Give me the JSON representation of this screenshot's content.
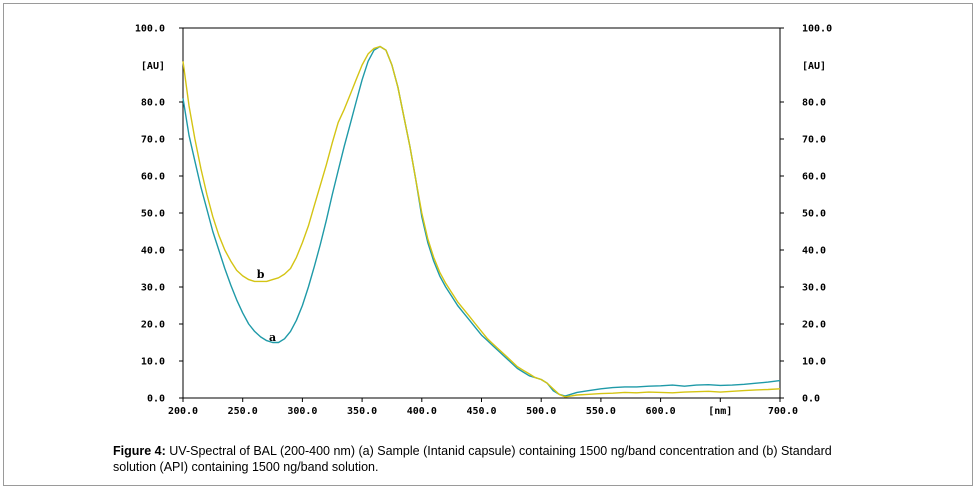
{
  "caption": {
    "label": "Figure 4:",
    "text": " UV-Spectral of BAL (200-400 nm) (a) Sample (Intanid capsule) containing 1500 ng/band concentration and (b) Standard solution (API) containing 1500 ng/band solution."
  },
  "chart_data": {
    "type": "line",
    "xlabel": "[nm]",
    "ylabel": "[AU]",
    "ylabel_right": "[AU]",
    "xlim": [
      200,
      700
    ],
    "ylim": [
      0,
      100
    ],
    "x_ticks": [
      "200.0",
      "250.0",
      "300.0",
      "350.0",
      "400.0",
      "450.0",
      "500.0",
      "550.0",
      "600.0",
      "650.0",
      "700.0"
    ],
    "y_ticks": [
      "0.0",
      "10.0",
      "20.0",
      "30.0",
      "40.0",
      "50.0",
      "60.0",
      "70.0",
      "80.0",
      "100.0"
    ],
    "grid": false,
    "series": [
      {
        "name": "a",
        "color": "#1f9aa8",
        "label_at": [
          275,
          16.5
        ],
        "x": [
          200,
          205,
          210,
          215,
          220,
          225,
          230,
          235,
          240,
          245,
          250,
          255,
          260,
          265,
          270,
          275,
          280,
          285,
          290,
          295,
          300,
          305,
          310,
          315,
          320,
          325,
          330,
          335,
          340,
          345,
          350,
          355,
          360,
          365,
          370,
          375,
          380,
          385,
          390,
          395,
          400,
          405,
          410,
          415,
          420,
          425,
          430,
          435,
          440,
          445,
          450,
          455,
          460,
          465,
          470,
          475,
          480,
          485,
          490,
          495,
          500,
          505,
          510,
          515,
          520,
          530,
          540,
          550,
          560,
          570,
          580,
          590,
          600,
          610,
          620,
          630,
          640,
          650,
          660,
          670,
          680,
          690,
          700
        ],
        "y": [
          81,
          71,
          64,
          57,
          51,
          45,
          40,
          35,
          30.5,
          26.5,
          23,
          20,
          18,
          16.5,
          15.5,
          15,
          15,
          16,
          18,
          21,
          25,
          30,
          35.5,
          41.5,
          48,
          55,
          61.5,
          68,
          74,
          80,
          86,
          91,
          94,
          95,
          94,
          90,
          84,
          76,
          68,
          59,
          49,
          42,
          37,
          33,
          30,
          27.5,
          25,
          23,
          21,
          19,
          17,
          15.5,
          14,
          12.5,
          11,
          9.5,
          8,
          7,
          6,
          5.5,
          5,
          4,
          2,
          1,
          0.5,
          1.5,
          2,
          2.5,
          2.8,
          3,
          3,
          3.2,
          3.3,
          3.5,
          3.2,
          3.5,
          3.6,
          3.4,
          3.5,
          3.7,
          4,
          4.3,
          4.7
        ]
      },
      {
        "name": "b",
        "color": "#d4c414",
        "label_at": [
          265,
          33.5
        ],
        "x": [
          200,
          205,
          210,
          215,
          220,
          225,
          230,
          235,
          240,
          245,
          250,
          255,
          260,
          265,
          270,
          275,
          280,
          285,
          290,
          295,
          300,
          305,
          310,
          315,
          320,
          325,
          330,
          335,
          340,
          345,
          350,
          355,
          360,
          365,
          370,
          375,
          380,
          385,
          390,
          395,
          400,
          405,
          410,
          415,
          420,
          425,
          430,
          435,
          440,
          445,
          450,
          455,
          460,
          465,
          470,
          475,
          480,
          485,
          490,
          495,
          500,
          505,
          510,
          515,
          520,
          530,
          540,
          550,
          560,
          570,
          580,
          590,
          600,
          610,
          620,
          630,
          640,
          650,
          660,
          670,
          680,
          690,
          700
        ],
        "y": [
          91,
          79,
          70,
          62,
          55,
          49,
          44,
          40,
          37,
          34.5,
          33,
          32,
          31.5,
          31.5,
          31.5,
          32,
          32.5,
          33.5,
          35,
          38,
          42,
          46.5,
          52,
          57.5,
          63,
          69,
          74.5,
          78,
          82,
          86,
          90,
          93,
          94.5,
          95,
          94,
          90,
          84,
          76,
          68,
          59,
          50,
          43,
          38,
          34,
          31,
          28.5,
          26,
          24,
          22,
          20,
          18,
          16,
          14.5,
          13,
          11.5,
          10,
          8.5,
          7.5,
          6.5,
          5.5,
          5,
          4,
          2.5,
          1,
          0.3,
          0.8,
          1,
          1.2,
          1.3,
          1.5,
          1.4,
          1.6,
          1.5,
          1.4,
          1.6,
          1.7,
          1.8,
          1.6,
          1.8,
          2,
          2.2,
          2.3,
          2.5
        ]
      }
    ]
  }
}
